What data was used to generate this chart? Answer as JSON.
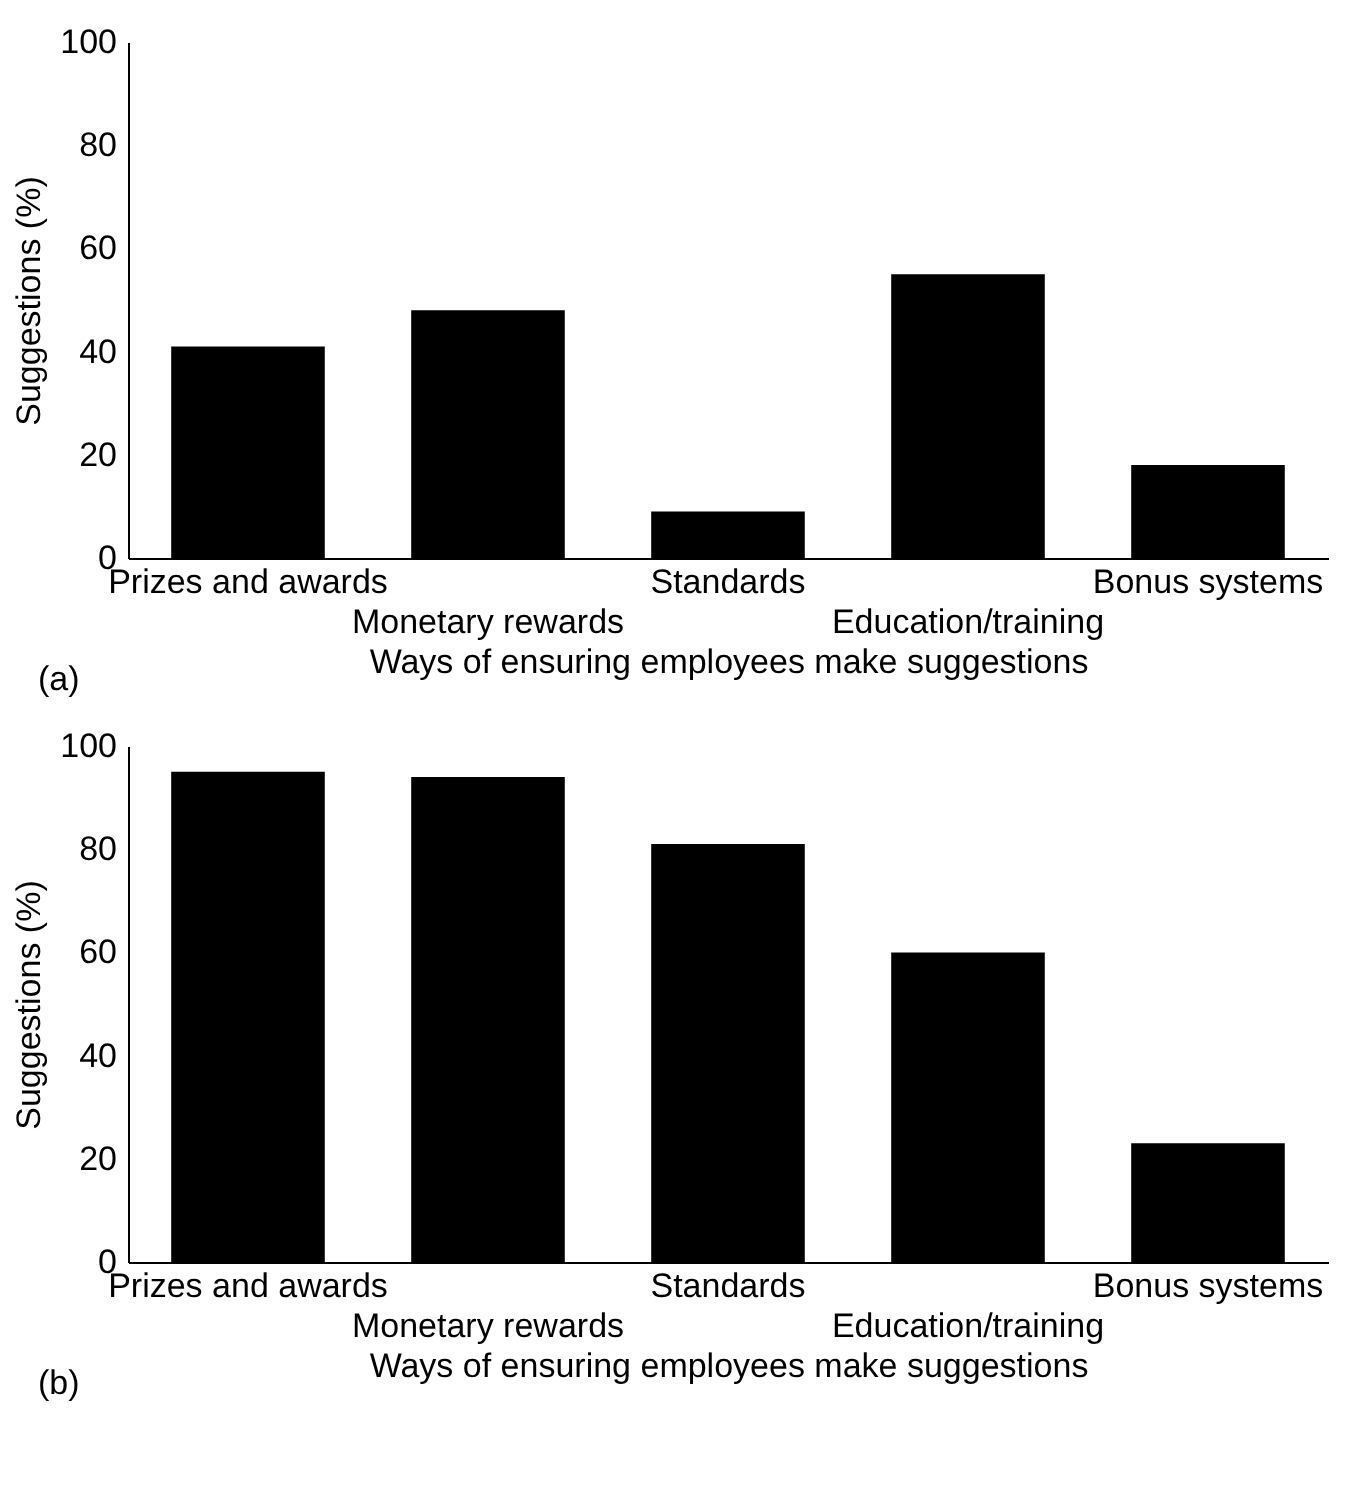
{
  "chart_data": [
    {
      "type": "bar",
      "categories": [
        "Prizes and awards",
        "Monetary rewards",
        "Standards",
        "Education/training",
        "Bonus systems"
      ],
      "values": [
        41,
        48,
        9,
        55,
        18
      ],
      "color": "#000000",
      "xlabel": "Ways of ensuring employees make suggestions",
      "ylabel": "Suggestions (%)",
      "ylim": [
        0,
        100
      ],
      "yticks": [
        0,
        20,
        40,
        60,
        80,
        100
      ],
      "grid": false,
      "annotations": [
        "(a)"
      ]
    },
    {
      "type": "bar",
      "categories": [
        "Prizes and awards",
        "Monetary rewards",
        "Standards",
        "Education/training",
        "Bonus systems"
      ],
      "values": [
        95,
        94,
        81,
        60,
        23
      ],
      "color": "#000000",
      "xlabel": "Ways of ensuring employees make suggestions",
      "ylabel": "Suggestions (%)",
      "ylim": [
        0,
        100
      ],
      "yticks": [
        0,
        20,
        40,
        60,
        80,
        100
      ],
      "grid": false,
      "annotations": [
        "(b)"
      ]
    }
  ]
}
